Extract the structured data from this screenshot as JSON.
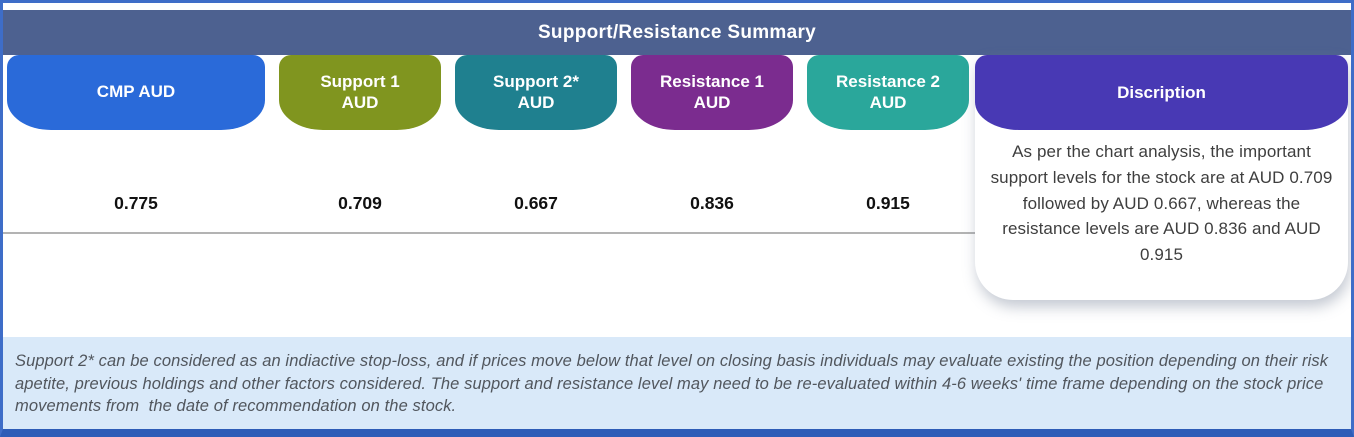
{
  "title": "Support/Resistance Summary",
  "columns": [
    {
      "id": "cmp",
      "label_line1": "CMP AUD",
      "label_line2": "",
      "value": "0.775",
      "color": "#2a6ad9"
    },
    {
      "id": "support1",
      "label_line1": "Support 1",
      "label_line2": "AUD",
      "value": "0.709",
      "color": "#80951f"
    },
    {
      "id": "support2",
      "label_line1": "Support 2*",
      "label_line2": "AUD",
      "value": "0.667",
      "color": "#1f808f"
    },
    {
      "id": "resistance1",
      "label_line1": "Resistance 1",
      "label_line2": "AUD",
      "value": "0.836",
      "color": "#7b2c8f"
    },
    {
      "id": "resistance2",
      "label_line1": "Resistance 2",
      "label_line2": "AUD",
      "value": "0.915",
      "color": "#2aa79b"
    }
  ],
  "description": {
    "header": "Discription",
    "color": "#4839b4",
    "text": "As per the chart analysis, the important support levels for the stock are at AUD 0.709 followed by AUD 0.667, whereas the resistance levels are AUD 0.836 and AUD 0.915"
  },
  "disclaimer": "Support 2* can be considered as an indiactive stop-loss, and if prices move below that level on closing basis individuals may evaluate existing the position depending on their risk apetite, previous holdings and other factors considered. The support and resistance level may need to be re-evaluated within 4-6 weeks' time frame depending on the stock price movements from  the date of recommendation on the stock.",
  "colors": {
    "frame_border": "#3e6dc8",
    "bottom_bar": "#2d5cb7",
    "title_bar": "#4d6190",
    "separator_line": "#b3b3b3",
    "disclaimer_background": "#d9e9f9"
  },
  "chart_data": {
    "type": "table",
    "title": "Support/Resistance Summary",
    "columns": [
      "CMP AUD",
      "Support 1 AUD",
      "Support 2* AUD",
      "Resistance 1 AUD",
      "Resistance 2 AUD",
      "Discription"
    ],
    "rows": [
      [
        "0.775",
        "0.709",
        "0.667",
        "0.836",
        "0.915",
        "As per the chart analysis, the important support levels for the stock are at AUD 0.709 followed by AUD 0.667, whereas the resistance levels are AUD 0.836 and AUD 0.915"
      ]
    ]
  }
}
